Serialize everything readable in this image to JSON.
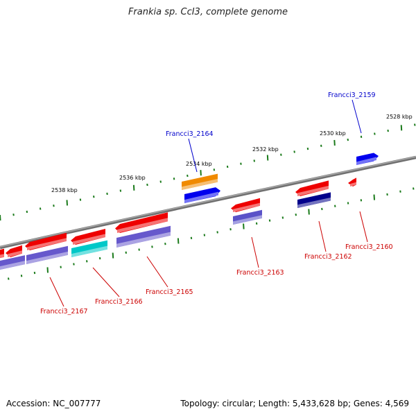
{
  "title": "Frankia sp. CcI3, complete genome",
  "footer": {
    "accession": "Accession: NC_007777",
    "summary": "Topology: circular; Length: 5,433,628 bp; Genes: 4,569"
  },
  "colors": {
    "backbone": "#808080",
    "tick": "#1a7a1a",
    "highlight_label": "#0000cc",
    "gene_label": "#cc0000"
  },
  "scale_labels": [
    "2528 kbp",
    "2530 kbp",
    "2532 kbp",
    "2534 kbp",
    "2536 kbp",
    "2538 kbp"
  ],
  "gene_labels": [
    {
      "text": "Francci3_2159",
      "color": "#0000cc"
    },
    {
      "text": "Francci3_2164",
      "color": "#0000cc"
    },
    {
      "text": "Francci3_2160",
      "color": "#cc0000"
    },
    {
      "text": "Francci3_2162",
      "color": "#cc0000"
    },
    {
      "text": "Francci3_2163",
      "color": "#cc0000"
    },
    {
      "text": "Francci3_2165",
      "color": "#cc0000"
    },
    {
      "text": "Francci3_2166",
      "color": "#cc0000"
    },
    {
      "text": "Francci3_2167",
      "color": "#cc0000"
    }
  ]
}
